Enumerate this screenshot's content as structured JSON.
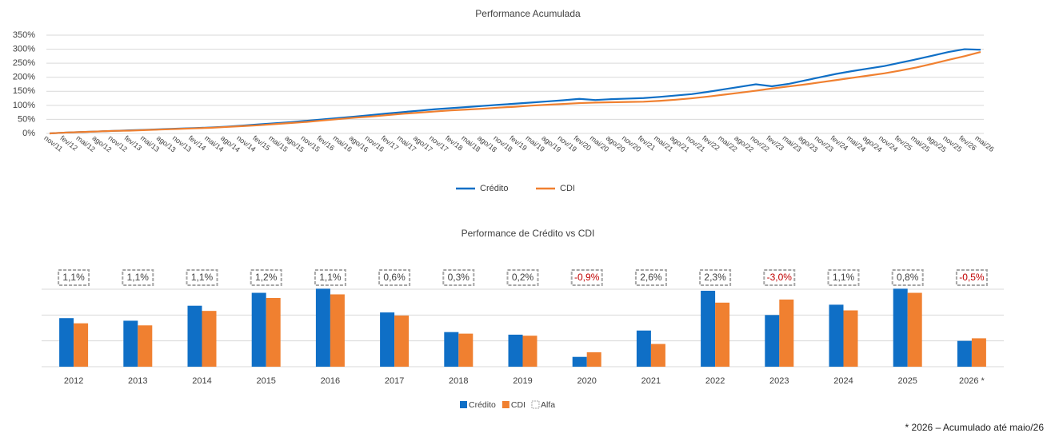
{
  "chart_data": [
    {
      "type": "line",
      "title": "Performance Acumulada",
      "categories": [
        "nov/11",
        "fev/12",
        "mai/12",
        "ago/12",
        "nov/12",
        "fev/13",
        "mai/13",
        "ago/13",
        "nov/13",
        "fev/14",
        "mai/14",
        "ago/14",
        "nov/14",
        "fev/15",
        "mai/15",
        "ago/15",
        "nov/15",
        "fev/16",
        "mai/16",
        "ago/16",
        "nov/16",
        "fev/17",
        "mai/17",
        "ago/17",
        "nov/17",
        "fev/18",
        "mai/18",
        "ago/18",
        "nov/18",
        "fev/19",
        "mai/19",
        "ago/19",
        "nov/19",
        "fev/20",
        "mai/20",
        "ago/20",
        "nov/20",
        "fev/21",
        "mai/21",
        "ago/21",
        "nov/21",
        "fev/22",
        "mai/22",
        "ago/22",
        "nov/22",
        "fev/23",
        "mai/23",
        "ago/23",
        "nov/23",
        "fev/24",
        "mai/24",
        "ago/24",
        "nov/24",
        "fev/25",
        "mai/25",
        "ago/25",
        "nov/25",
        "fev/26",
        "mai/26"
      ],
      "series": [
        {
          "name": "Crédito",
          "color": "#0f6fc6",
          "values": [
            0,
            3,
            5,
            7,
            9,
            11,
            13,
            15,
            17,
            19,
            21,
            24,
            28,
            32,
            36,
            40,
            45,
            50,
            55,
            60,
            65,
            71,
            76,
            81,
            86,
            90,
            94,
            98,
            102,
            106,
            110,
            114,
            118,
            123,
            119,
            122,
            124,
            126,
            130,
            135,
            140,
            148,
            157,
            166,
            175,
            168,
            176,
            188,
            200,
            212,
            222,
            231,
            240,
            252,
            264,
            277,
            290,
            300,
            298
          ]
        },
        {
          "name": "CDI",
          "color": "#f08030",
          "values": [
            0,
            3,
            5,
            7,
            9,
            10,
            12,
            14,
            16,
            18,
            20,
            23,
            26,
            29,
            33,
            37,
            41,
            46,
            51,
            56,
            60,
            65,
            70,
            74,
            78,
            82,
            85,
            88,
            92,
            95,
            99,
            102,
            105,
            108,
            110,
            111,
            112,
            113,
            116,
            120,
            125,
            131,
            138,
            145,
            152,
            160,
            167,
            174,
            182,
            190,
            198,
            206,
            214,
            224,
            235,
            248,
            262,
            275,
            290
          ]
        }
      ],
      "ylim": [
        0,
        350
      ],
      "yticks": [
        {
          "value": 0,
          "label": "0%"
        },
        {
          "value": 50,
          "label": "50%"
        },
        {
          "value": 100,
          "label": "100%"
        },
        {
          "value": 150,
          "label": "150%"
        },
        {
          "value": 200,
          "label": "200%"
        },
        {
          "value": 250,
          "label": "250%"
        },
        {
          "value": 300,
          "label": "300%"
        },
        {
          "value": 350,
          "label": "350%"
        }
      ],
      "grid": true,
      "legend": "bottom"
    },
    {
      "type": "bar",
      "title": "Performance de Crédito vs CDI",
      "categories": [
        "2012",
        "2013",
        "2014",
        "2015",
        "2016",
        "2017",
        "2018",
        "2019",
        "2020",
        "2021",
        "2022",
        "2023",
        "2024",
        "2025",
        "2026 *"
      ],
      "series": [
        {
          "name": "Crédito",
          "color": "#0f6fc6",
          "values": [
            9.4,
            8.9,
            11.8,
            14.3,
            15.1,
            10.5,
            6.7,
            6.2,
            1.9,
            7.0,
            14.7,
            10.0,
            12.0,
            15.1,
            5.0
          ]
        },
        {
          "name": "CDI",
          "color": "#f08030",
          "values": [
            8.4,
            8.0,
            10.8,
            13.3,
            14.0,
            9.9,
            6.4,
            6.0,
            2.8,
            4.4,
            12.4,
            13.0,
            10.9,
            14.3,
            5.5
          ]
        },
        {
          "name": "Alfa",
          "color": "#a6a6a6",
          "negative_color": "#c00000",
          "values": [
            1.1,
            1.1,
            1.1,
            1.2,
            1.1,
            0.6,
            0.3,
            0.2,
            -0.9,
            2.6,
            2.3,
            -3.0,
            1.1,
            0.8,
            -0.5
          ],
          "value_labels": [
            "1,1%",
            "1,1%",
            "1,1%",
            "1,2%",
            "1,1%",
            "0,6%",
            "0,3%",
            "0,2%",
            "-0,9%",
            "2,6%",
            "2,3%",
            "-3,0%",
            "1,1%",
            "0,8%",
            "-0,5%"
          ]
        }
      ],
      "ylim": [
        0,
        15
      ],
      "yticks": [
        0,
        5,
        10,
        15
      ],
      "grid": true,
      "legend": "bottom",
      "note": "* 2026 – Acumulado até maio/26"
    }
  ]
}
